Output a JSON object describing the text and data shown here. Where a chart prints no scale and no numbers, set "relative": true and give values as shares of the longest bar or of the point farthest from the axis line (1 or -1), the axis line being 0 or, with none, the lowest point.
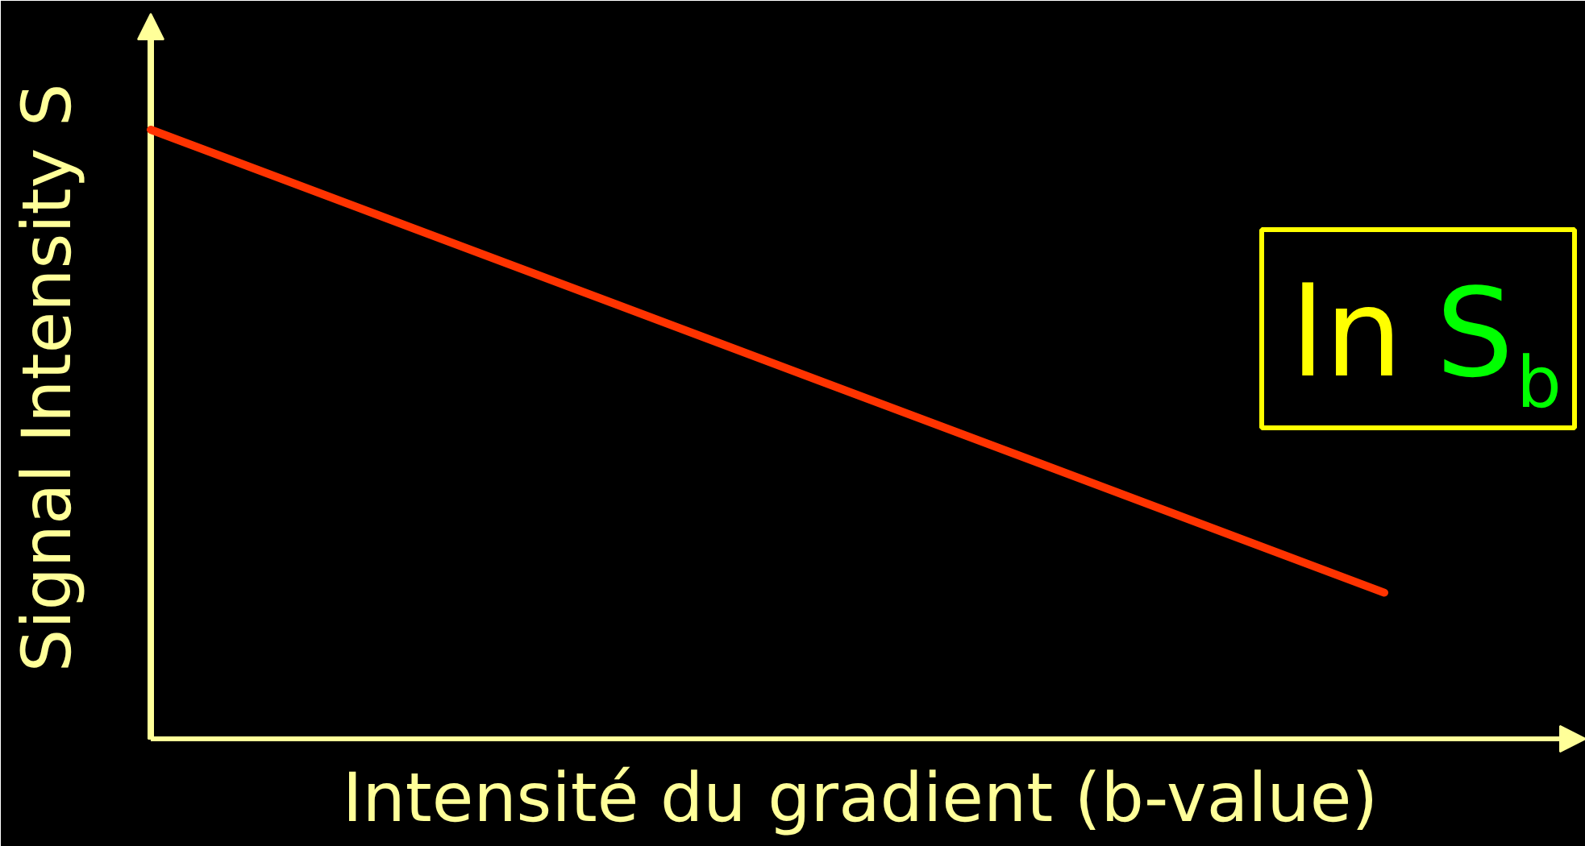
{
  "chart_data": {
    "type": "line",
    "xlabel": "Intensité du gradient (b-value)",
    "ylabel": "Signal Intensity S",
    "categories": [
      null,
      null
    ],
    "series": [
      {
        "color": "#ff3300",
        "values": [
          1,
          0.24
        ]
      }
    ],
    "relative": true,
    "line_style": "solid",
    "annotations": [
      "ln S$_{b}$"
    ]
  }
}
